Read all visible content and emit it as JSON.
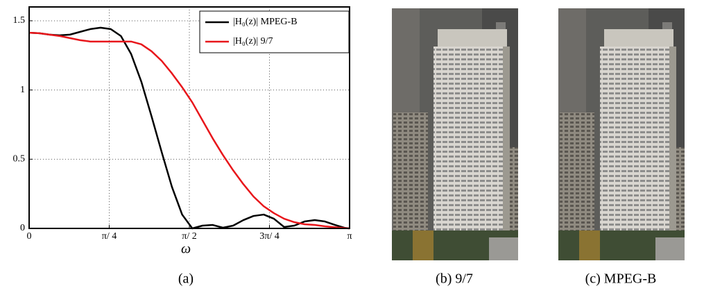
{
  "chart_data": {
    "type": "line",
    "x_label": "ω",
    "x": [
      0,
      0.1,
      0.2,
      0.3,
      0.4,
      0.5,
      0.6,
      0.7,
      0.8,
      0.9,
      1.0,
      1.1,
      1.2,
      1.3,
      1.4,
      1.5,
      1.6,
      1.7,
      1.8,
      1.9,
      2.0,
      2.1,
      2.2,
      2.3,
      2.4,
      2.5,
      2.6,
      2.7,
      2.8,
      2.9,
      3.0,
      3.1,
      3.1416
    ],
    "series": [
      {
        "name": "|H₀(z)| MPEG-B",
        "color": "#000000",
        "values": [
          1.414,
          1.41,
          1.4,
          1.395,
          1.4,
          1.42,
          1.44,
          1.45,
          1.44,
          1.39,
          1.26,
          1.06,
          0.81,
          0.55,
          0.3,
          0.1,
          0.0,
          0.02,
          0.025,
          0.005,
          0.02,
          0.06,
          0.09,
          0.1,
          0.07,
          0.01,
          0.02,
          0.05,
          0.06,
          0.05,
          0.025,
          0.003,
          0
        ]
      },
      {
        "name": "|H₀(z)| 9/7",
        "color": "#e8161b",
        "values": [
          1.414,
          1.41,
          1.4,
          1.39,
          1.375,
          1.36,
          1.35,
          1.35,
          1.35,
          1.35,
          1.35,
          1.33,
          1.28,
          1.21,
          1.12,
          1.02,
          0.91,
          0.78,
          0.65,
          0.53,
          0.42,
          0.32,
          0.23,
          0.16,
          0.11,
          0.07,
          0.045,
          0.03,
          0.025,
          0.015,
          0.008,
          0.002,
          0
        ]
      }
    ],
    "xlim": [
      0,
      3.1416
    ],
    "ylim": [
      0,
      1.6
    ],
    "xticks": [
      0,
      {
        "value": 0.7854,
        "label": "π/ 4"
      },
      {
        "value": 1.5708,
        "label": "π/ 2"
      },
      {
        "value": 2.3562,
        "label": "3π/ 4"
      },
      {
        "value": 3.1416,
        "label": "π"
      }
    ],
    "yticks": [
      0,
      0.5,
      1,
      1.5
    ],
    "grid": true,
    "legend": "upper right"
  },
  "captions": [
    "(a)",
    "(b) 9/7",
    "(c) MPEG-B"
  ]
}
